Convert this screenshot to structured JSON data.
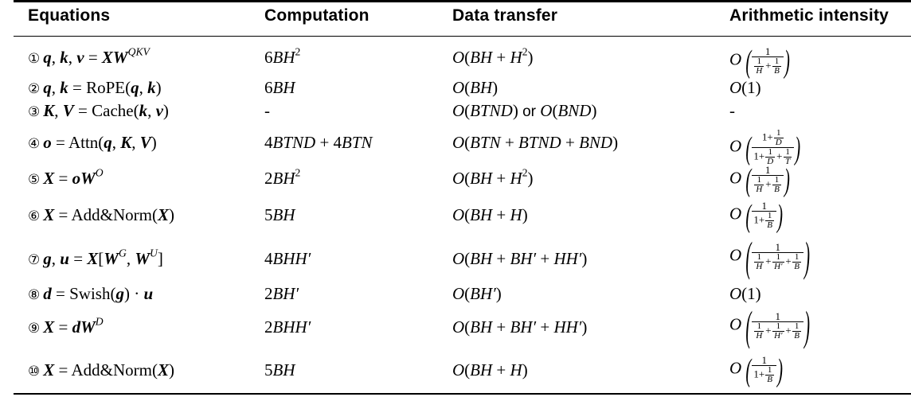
{
  "table": {
    "headers": [
      "Equations",
      "Computation",
      "Data transfer",
      "Arithmetic intensity"
    ],
    "rows": [
      {
        "num": "①",
        "eq": "q, k, v = XW^QKV",
        "comp": "6BH^2",
        "data": "O(BH + H^2)",
        "ai": "O(1/(1/H + 1/B))"
      },
      {
        "num": "②",
        "eq": "q, k = RoPE(q, k)",
        "comp": "6BH",
        "data": "O(BH)",
        "ai": "O(1)"
      },
      {
        "num": "③",
        "eq": "K, V = Cache(k, v)",
        "comp": "-",
        "data": "O(BTND) or O(BND)",
        "ai": "-"
      },
      {
        "num": "④",
        "eq": "o = Attn(q, K, V)",
        "comp": "4BTND + 4BTN",
        "data": "O(BTN + BTND + BND)",
        "ai": "O((1 + 1/D)/(1 + 1/D + 1/T))"
      },
      {
        "num": "⑤",
        "eq": "X = oW^O",
        "comp": "2BH^2",
        "data": "O(BH + H^2)",
        "ai": "O(1/(1/H + 1/B))"
      },
      {
        "num": "⑥",
        "eq": "X = Add&Norm(X)",
        "comp": "5BH",
        "data": "O(BH + H)",
        "ai": "O(1/(1 + 1/B))"
      },
      {
        "num": "⑦",
        "eq": "g, u = X[W^G, W^U]",
        "comp": "4BHH'",
        "data": "O(BH + BH' + HH')",
        "ai": "O(1/(1/H + 1/H' + 1/B))"
      },
      {
        "num": "⑧",
        "eq": "d = Swish(g) · u",
        "comp": "2BH'",
        "data": "O(BH')",
        "ai": "O(1)"
      },
      {
        "num": "⑨",
        "eq": "X = dW^D",
        "comp": "2BHH'",
        "data": "O(BH + BH' + HH')",
        "ai": "O(1/(1/H + 1/H' + 1/B))"
      },
      {
        "num": "⑩",
        "eq": "X = Add&Norm(X)",
        "comp": "5BH",
        "data": "O(BH + H)",
        "ai": "O(1/(1 + 1/B))"
      }
    ]
  }
}
